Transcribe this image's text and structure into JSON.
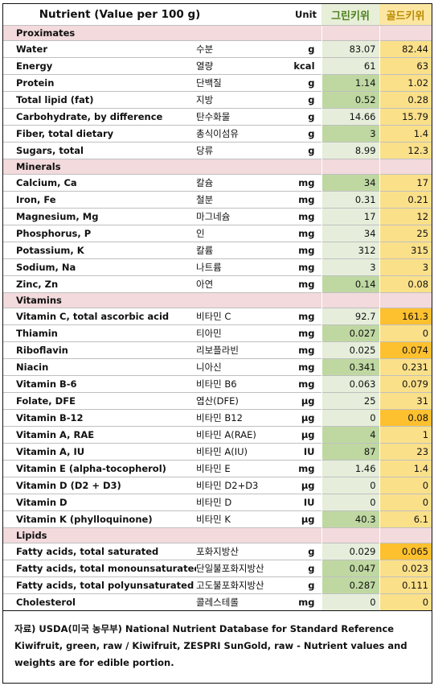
{
  "header": {
    "nutrient": "Nutrient (Value per 100 g)",
    "unit": "Unit",
    "green_label": "그린키위",
    "gold_label": "골드키위"
  },
  "colors": {
    "section_bg": "#f3dadc",
    "green_col_bg": "#e6eedb",
    "green_highlight": "#bfd8a2",
    "gold_col_bg": "#fbe08a",
    "gold_highlight": "#fdc02f",
    "green_text": "#4b7f1e",
    "gold_text": "#b88a00"
  },
  "rows": [
    {
      "section": "Proximates"
    },
    {
      "name": "Water",
      "kr": "수분",
      "unit": "g",
      "green": "83.07",
      "gold": "82.44"
    },
    {
      "name": "Energy",
      "kr": "열량",
      "unit": "kcal",
      "green": "61",
      "gold": "63"
    },
    {
      "name": "Protein",
      "kr": "단백질",
      "unit": "g",
      "green": "1.14",
      "gold": "1.02",
      "hl": "green"
    },
    {
      "name": "Total lipid (fat)",
      "kr": "지방",
      "unit": "g",
      "green": "0.52",
      "gold": "0.28",
      "hl": "green"
    },
    {
      "name": "Carbohydrate, by difference",
      "kr": "탄수화물",
      "unit": "g",
      "green": "14.66",
      "gold": "15.79"
    },
    {
      "name": "Fiber, total dietary",
      "kr": "총식이섬유",
      "unit": "g",
      "green": "3",
      "gold": "1.4",
      "hl": "green"
    },
    {
      "name": "Sugars, total",
      "kr": "당류",
      "unit": "g",
      "green": "8.99",
      "gold": "12.3"
    },
    {
      "section": "Minerals"
    },
    {
      "name": "Calcium, Ca",
      "kr": "칼슘",
      "unit": "mg",
      "green": "34",
      "gold": "17",
      "hl": "green"
    },
    {
      "name": "Iron, Fe",
      "kr": "철분",
      "unit": "mg",
      "green": "0.31",
      "gold": "0.21"
    },
    {
      "name": "Magnesium, Mg",
      "kr": "마그네슘",
      "unit": "mg",
      "green": "17",
      "gold": "12"
    },
    {
      "name": "Phosphorus, P",
      "kr": "인",
      "unit": "mg",
      "green": "34",
      "gold": "25"
    },
    {
      "name": "Potassium, K",
      "kr": "칼륨",
      "unit": "mg",
      "green": "312",
      "gold": "315"
    },
    {
      "name": "Sodium, Na",
      "kr": "나트륨",
      "unit": "mg",
      "green": "3",
      "gold": "3"
    },
    {
      "name": "Zinc, Zn",
      "kr": "아연",
      "unit": "mg",
      "green": "0.14",
      "gold": "0.08",
      "hl": "green"
    },
    {
      "section": "Vitamins"
    },
    {
      "name": "Vitamin C, total ascorbic acid",
      "kr": "비타민 C",
      "unit": "mg",
      "green": "92.7",
      "gold": "161.3",
      "hl": "gold"
    },
    {
      "name": "Thiamin",
      "kr": "티아민",
      "unit": "mg",
      "green": "0.027",
      "gold": "0",
      "hl": "green"
    },
    {
      "name": "Riboflavin",
      "kr": "리보플라빈",
      "unit": "mg",
      "green": "0.025",
      "gold": "0.074",
      "hl": "gold"
    },
    {
      "name": "Niacin",
      "kr": "니아신",
      "unit": "mg",
      "green": "0.341",
      "gold": "0.231",
      "hl": "green"
    },
    {
      "name": "Vitamin B-6",
      "kr": "비타민 B6",
      "unit": "mg",
      "green": "0.063",
      "gold": "0.079"
    },
    {
      "name": "Folate, DFE",
      "kr": "엽산(DFE)",
      "unit": "µg",
      "green": "25",
      "gold": "31"
    },
    {
      "name": "Vitamin B-12",
      "kr": "비타민 B12",
      "unit": "µg",
      "green": "0",
      "gold": "0.08",
      "hl": "gold"
    },
    {
      "name": "Vitamin A, RAE",
      "kr": "비타민 A(RAE)",
      "unit": "µg",
      "green": "4",
      "gold": "1",
      "hl": "green"
    },
    {
      "name": "Vitamin A, IU",
      "kr": "비타민 A(IU)",
      "unit": "IU",
      "green": "87",
      "gold": "23",
      "hl": "green"
    },
    {
      "name": "Vitamin E (alpha-tocopherol)",
      "kr": "비타민 E",
      "unit": "mg",
      "green": "1.46",
      "gold": "1.4"
    },
    {
      "name": "Vitamin D (D2 + D3)",
      "kr": "비타민 D2+D3",
      "unit": "µg",
      "green": "0",
      "gold": "0"
    },
    {
      "name": "Vitamin D",
      "kr": "비타민 D",
      "unit": "IU",
      "green": "0",
      "gold": "0"
    },
    {
      "name": "Vitamin K (phylloquinone)",
      "kr": "비타민 K",
      "unit": "µg",
      "green": "40.3",
      "gold": "6.1",
      "hl": "green"
    },
    {
      "section": "Lipids"
    },
    {
      "name": "Fatty acids, total saturated",
      "kr": "포화지방산",
      "unit": "g",
      "green": "0.029",
      "gold": "0.065",
      "hl": "gold"
    },
    {
      "name": "Fatty acids, total monounsaturated",
      "kr": "단일불포화지방산",
      "unit": "g",
      "green": "0.047",
      "gold": "0.023",
      "hl": "green"
    },
    {
      "name": "Fatty acids, total polyunsaturated",
      "kr": "고도불포화지방산",
      "unit": "g",
      "green": "0.287",
      "gold": "0.111",
      "hl": "green"
    },
    {
      "name": "Cholesterol",
      "kr": "콜레스테롤",
      "unit": "mg",
      "green": "0",
      "gold": "0"
    }
  ],
  "source": {
    "line1": "자료) USDA(미국 농무부) National Nutrient Database for Standard Reference",
    "line2": "Kiwifruit, green, raw / Kiwifruit, ZESPRI SunGold, raw - Nutrient values and",
    "line3": "weights are for edible portion."
  }
}
